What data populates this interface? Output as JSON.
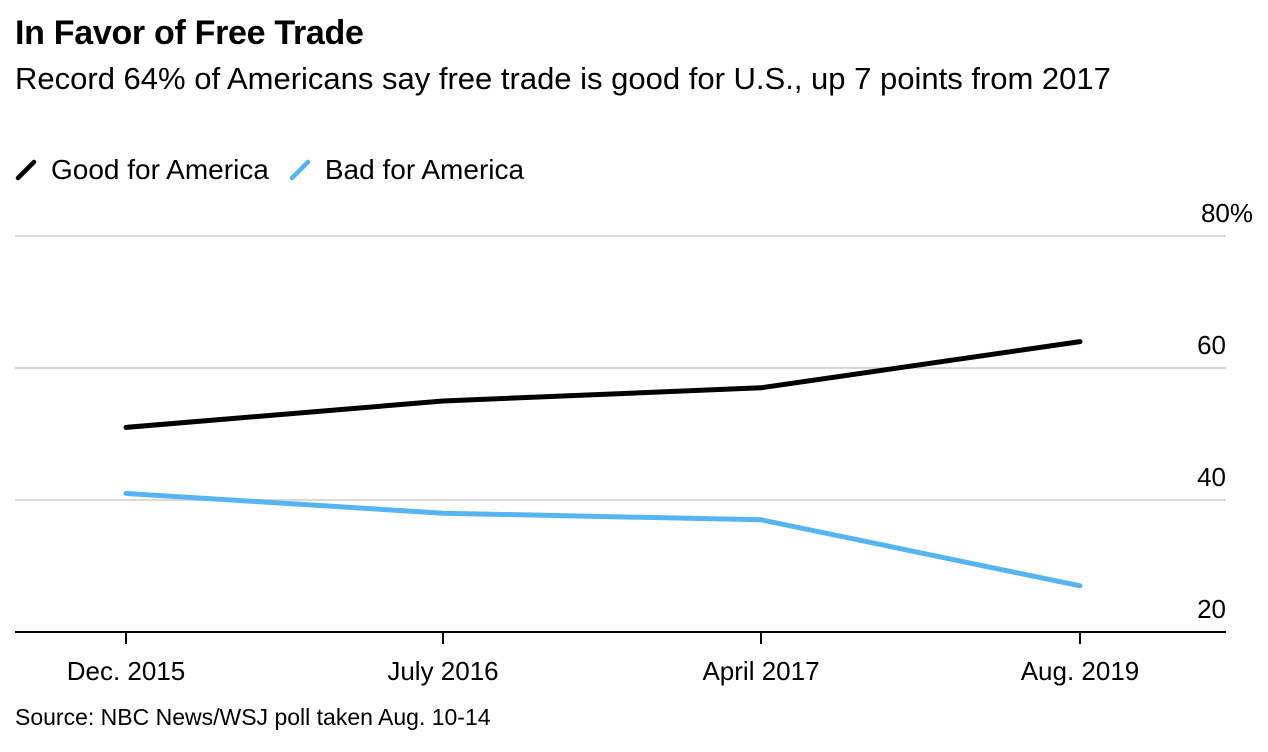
{
  "chart_data": {
    "type": "line",
    "title": "In Favor of Free Trade",
    "subtitle": "Record 64% of Americans say free trade is good for U.S., up 7 points from 2017",
    "categories": [
      "Dec. 2015",
      "July 2016",
      "April 2017",
      "Aug. 2019"
    ],
    "series": [
      {
        "name": "Good for America",
        "color": "#000000",
        "values": [
          51,
          55,
          57,
          64
        ]
      },
      {
        "name": "Bad for America",
        "color": "#56b4f0",
        "values": [
          41,
          38,
          37,
          27
        ]
      }
    ],
    "yticks": [
      "20",
      "40",
      "60",
      "80%"
    ],
    "ylim": [
      20,
      80
    ],
    "grid": true,
    "source": "Source: NBC News/WSJ poll taken Aug. 10-14"
  }
}
